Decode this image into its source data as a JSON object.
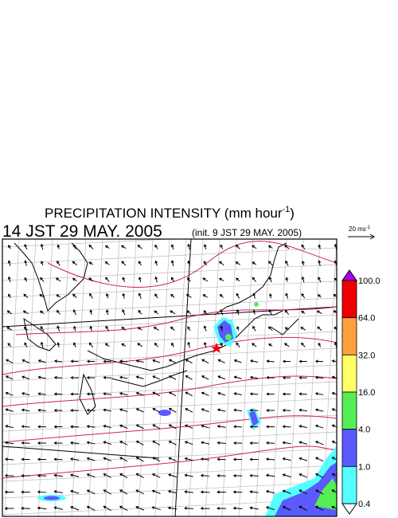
{
  "header": {
    "title": "PRECIPITATION INTENSITY (mm hour",
    "title_sup": "-1",
    "title_end": ")",
    "time": "14 JST 29 MAY. 2005",
    "init": "(init. 9 JST 29 MAY. 2005)"
  },
  "reference_vector": {
    "label": "20 ms",
    "label_sup": "-1"
  },
  "colorbar": {
    "labels": [
      "100.0",
      "64.0",
      "32.0",
      "16.0",
      "4.0",
      "1.0",
      "0.4"
    ],
    "colors": [
      "#ee0000",
      "#ffa040",
      "#ffff66",
      "#55ee55",
      "#5a5aff",
      "#55ffff"
    ],
    "over_color": "#aa00ee",
    "under_color": "#ffffff"
  }
}
